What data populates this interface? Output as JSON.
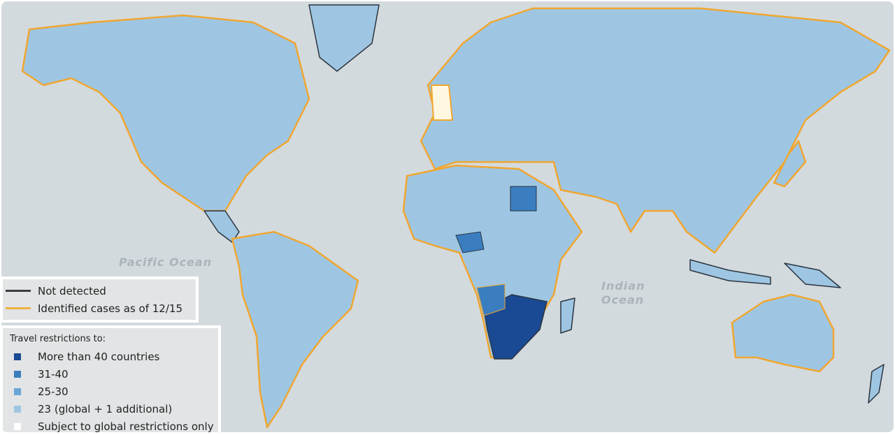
{
  "map": {
    "ocean_labels": [
      "Pacific Ocean",
      "Indian Ocean"
    ],
    "colors": {
      "ocean": "#d3dadd",
      "more_than_40": "#1a4a94",
      "31_40": "#3a7ebf",
      "25_30": "#6aa5d6",
      "23": "#9ec6e2",
      "global_only": "#ffffff",
      "not_detected": "#2a3440",
      "identified": "#f0a630"
    }
  },
  "legend_lines": {
    "items": [
      {
        "label": "Not detected",
        "color": "#3a3f44"
      },
      {
        "label": "Identified cases as of 12/15",
        "color": "#f0b040"
      }
    ]
  },
  "legend_fill": {
    "title": "Travel restrictions to:",
    "items": [
      {
        "label": "More than 40 countries",
        "color": "#1a4a94"
      },
      {
        "label": "31-40",
        "color": "#3a7ebf"
      },
      {
        "label": "25-30",
        "color": "#6aa5d6"
      },
      {
        "label": "23 (global + 1 additional)",
        "color": "#9ec6e2"
      },
      {
        "label": "Subject to global restrictions only",
        "color": "#ffffff"
      }
    ]
  }
}
